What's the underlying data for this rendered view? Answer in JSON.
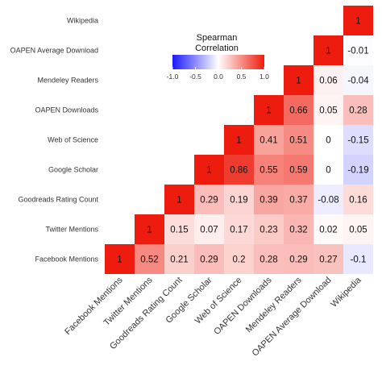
{
  "chart_data": {
    "type": "heatmap",
    "title": "",
    "variables": [
      "Facebook Mentions",
      "Twitter Mentions",
      "Goodreads Rating Count",
      "Google Scholar",
      "Web of Science",
      "OAPEN Downloads",
      "Mendeley Readers",
      "OAPEN Average Download",
      "Wikipedia"
    ],
    "y_labels_display": [
      "Facebook Mentions",
      "Twitter Mentions",
      "Goodreads Rating Count",
      "Google Scholar",
      "Web of Science",
      "OAPEN Downloads",
      "Mendeley Readers",
      "OAPEN Average Download",
      "Wikipedia"
    ],
    "rows": [
      {
        "row": "Facebook Mentions",
        "values": [
          1,
          0.52,
          0.21,
          0.29,
          0.2,
          0.28,
          0.29,
          0.27,
          -0.1
        ]
      },
      {
        "row": "Twitter Mentions",
        "values": [
          null,
          1,
          0.15,
          0.07,
          0.17,
          0.23,
          0.32,
          0.02,
          0.05
        ]
      },
      {
        "row": "Goodreads Rating Count",
        "values": [
          null,
          null,
          1,
          0.29,
          0.19,
          0.39,
          0.37,
          -0.08,
          0.16
        ]
      },
      {
        "row": "Google Scholar",
        "values": [
          null,
          null,
          null,
          1,
          0.86,
          0.55,
          0.59,
          0,
          -0.19
        ]
      },
      {
        "row": "Web of Science",
        "values": [
          null,
          null,
          null,
          null,
          1,
          0.41,
          0.51,
          0,
          -0.15
        ]
      },
      {
        "row": "OAPEN Downloads",
        "values": [
          null,
          null,
          null,
          null,
          null,
          1,
          0.66,
          0.05,
          0.28
        ]
      },
      {
        "row": "Mendeley Readers",
        "values": [
          null,
          null,
          null,
          null,
          null,
          null,
          1,
          0.06,
          -0.04
        ]
      },
      {
        "row": "OAPEN Average Download",
        "values": [
          null,
          null,
          null,
          null,
          null,
          null,
          null,
          1,
          -0.01
        ]
      },
      {
        "row": "Wikipedia",
        "values": [
          null,
          null,
          null,
          null,
          null,
          null,
          null,
          null,
          1
        ]
      }
    ],
    "legend": {
      "title_lines": [
        "Spearman",
        "Correlation"
      ],
      "ticks": [
        "-1.0",
        "-0.5",
        "0.0",
        "0.5",
        "1.0"
      ],
      "range": [
        -1,
        1
      ],
      "placement": "top-center"
    },
    "colors": {
      "low": "#1a1aff",
      "mid": "#ffffff",
      "high": "#ee1c0e"
    }
  }
}
